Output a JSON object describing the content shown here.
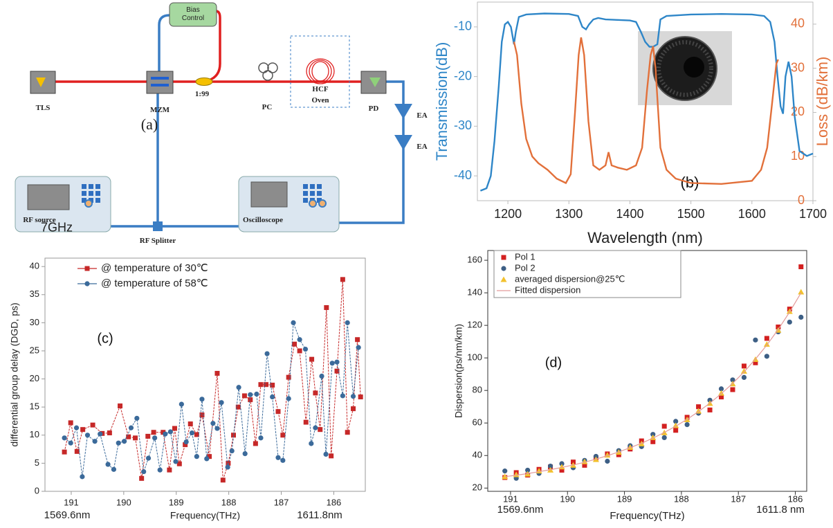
{
  "diagram": {
    "panel_label": "(a)",
    "labels": {
      "tls": "TLS",
      "mzm": "MZM",
      "bias": "Bias Control",
      "coupler": "1:99",
      "pc": "PC",
      "hcf": "HCF",
      "oven": "Oven",
      "pd": "PD",
      "ea1": "EA",
      "ea2": "EA",
      "rf_source": "RF source",
      "oscilloscope": "Oscilloscope",
      "rf_splitter": "RF Splitter",
      "frequency": "7GHz"
    }
  },
  "chart_data": [
    {
      "type": "line",
      "xlabel": "Wavelength (nm)",
      "ylabel": "Transmission(dB)",
      "y2label": "Loss (dB/km)",
      "annotation": "(b)",
      "xlim": [
        1150,
        1700
      ],
      "xticks": [
        1200,
        1300,
        1400,
        1500,
        1600,
        1700
      ],
      "ylim": [
        -45,
        -5
      ],
      "yticks": [
        -40,
        -30,
        -20,
        -10
      ],
      "y2lim": [
        0,
        45
      ],
      "y2ticks": [
        0,
        10,
        20,
        30,
        40
      ],
      "series": [
        {
          "color": "#2e86c8",
          "x": [
            1155,
            1165,
            1172,
            1178,
            1185,
            1190,
            1195,
            1200,
            1205,
            1210,
            1213,
            1218,
            1230,
            1260,
            1300,
            1315,
            1322,
            1328,
            1333,
            1340,
            1348,
            1360,
            1380,
            1400,
            1410,
            1418,
            1425,
            1432,
            1438,
            1445,
            1450,
            1460,
            1500,
            1550,
            1600,
            1620,
            1630,
            1637,
            1642,
            1647,
            1651,
            1655,
            1660,
            1665,
            1670,
            1678,
            1690,
            1700
          ],
          "values": [
            -43,
            -42.5,
            -40,
            -33,
            -22,
            -13,
            -9.5,
            -9,
            -10,
            -13.5,
            -11,
            -8,
            -7.5,
            -7.3,
            -7.4,
            -7.8,
            -10,
            -10.5,
            -9.5,
            -8.5,
            -8.2,
            -8.5,
            -8.6,
            -8.7,
            -9,
            -11,
            -13,
            -14,
            -14,
            -13.5,
            -8.5,
            -7.8,
            -7.5,
            -7.4,
            -7.5,
            -7.8,
            -9,
            -13,
            -20,
            -26,
            -27.5,
            -20,
            -17,
            -20,
            -28,
            -35,
            -36,
            -35.5
          ]
        },
        {
          "color": "#e2703a",
          "axis": "y2",
          "x": [
            1210,
            1215,
            1222,
            1230,
            1240,
            1250,
            1265,
            1280,
            1295,
            1303,
            1310,
            1316,
            1320,
            1325,
            1332,
            1340,
            1350,
            1360,
            1365,
            1370,
            1380,
            1395,
            1410,
            1420,
            1428,
            1434,
            1438,
            1442,
            1450,
            1460,
            1475,
            1500,
            1550,
            1600,
            1615,
            1625,
            1633,
            1640,
            1643
          ],
          "values": [
            36,
            33,
            22,
            14,
            10,
            8.5,
            7,
            5,
            4,
            6,
            20,
            33,
            37,
            33,
            18,
            8,
            7,
            8,
            11,
            8,
            7.5,
            7,
            8,
            12,
            25,
            33,
            35,
            30,
            12,
            7,
            5,
            4,
            3.8,
            4.5,
            7,
            12,
            22,
            31,
            32
          ]
        }
      ]
    },
    {
      "type": "line",
      "xlabel": "Frequency(THz)",
      "ylabel": "differential group delay (DGD, ps)",
      "annotation": "(c)",
      "x_range_labels": [
        "1569.6nm",
        "1611.8nm"
      ],
      "legend": "upper left",
      "xlim": [
        191.5,
        185.4
      ],
      "xticks": [
        191,
        190,
        189,
        188,
        187,
        186
      ],
      "ylim": [
        0,
        41.5
      ],
      "yticks": [
        0,
        5,
        10,
        15,
        20,
        25,
        30,
        35,
        40
      ],
      "series": [
        {
          "name": "@ temperature of 30℃",
          "color": "#c62828",
          "marker": "square",
          "x": [
            191.13,
            191.01,
            190.89,
            190.78,
            190.59,
            190.41,
            190.27,
            190.07,
            189.91,
            189.78,
            189.66,
            189.54,
            189.43,
            189.25,
            189.13,
            189.03,
            188.94,
            188.83,
            188.73,
            188.61,
            188.51,
            188.37,
            188.22,
            188.11,
            188.01,
            187.91,
            187.82,
            187.7,
            187.59,
            187.49,
            187.39,
            187.29,
            187.17,
            187.06,
            186.97,
            186.86,
            186.75,
            186.65,
            186.53,
            186.42,
            186.35,
            186.26,
            186.14,
            186.05,
            185.94,
            185.83,
            185.74,
            185.63,
            185.55,
            185.49
          ],
          "values": [
            7,
            12.2,
            7.1,
            11,
            11.8,
            10.3,
            10.4,
            15.2,
            9.7,
            9.5,
            2.3,
            9.8,
            10.5,
            10.5,
            3.8,
            11.2,
            4.9,
            8.3,
            12,
            10.1,
            13.6,
            6.2,
            21,
            2,
            5,
            10,
            15,
            17,
            16.3,
            8.5,
            19,
            19,
            18.9,
            14.2,
            10,
            20.3,
            26.2,
            25,
            12.3,
            23.5,
            17.5,
            11,
            32.7,
            6.3,
            21.4,
            37.7,
            10.5,
            14.7,
            27,
            16.8
          ]
        },
        {
          "name": "@ temperature of 58℃",
          "color": "#3b6a9a",
          "marker": "circle",
          "x": [
            191.13,
            191.01,
            190.9,
            190.79,
            190.69,
            190.55,
            190.45,
            190.3,
            190.19,
            190.1,
            189.99,
            189.86,
            189.75,
            189.62,
            189.53,
            189.41,
            189.31,
            189.21,
            189.11,
            189.01,
            188.9,
            188.81,
            188.7,
            188.61,
            188.51,
            188.42,
            188.3,
            188.22,
            188.14,
            188.02,
            187.94,
            187.81,
            187.69,
            187.59,
            187.47,
            187.39,
            187.27,
            187.17,
            187.06,
            186.97,
            186.86,
            186.77,
            186.65,
            186.54,
            186.43,
            186.35,
            186.23,
            186.15,
            186.03,
            185.94,
            185.83,
            185.74,
            185.63,
            185.53
          ],
          "values": [
            9.5,
            8.6,
            11.3,
            2.6,
            10,
            8.9,
            10.2,
            4.8,
            3.9,
            8.6,
            8.9,
            11.3,
            13,
            3.5,
            5.9,
            9.5,
            3.8,
            10.2,
            10.6,
            5.3,
            15.5,
            8.8,
            10.4,
            6.2,
            16.4,
            5.8,
            12.1,
            11.2,
            15.8,
            4.3,
            7.2,
            18.5,
            6.7,
            17.2,
            17.3,
            9.5,
            24.5,
            16.8,
            6,
            5.5,
            16.5,
            30,
            27,
            25.3,
            8.5,
            11.3,
            20.5,
            6.6,
            22.8,
            23,
            17,
            30,
            16.9,
            25.6
          ]
        }
      ]
    },
    {
      "type": "scatter",
      "xlabel": "Frequency(THz)",
      "ylabel": "Dispersion(ps/nm/km)",
      "annotation": "(d)",
      "x_range_labels": [
        "1569.6nm",
        "1611.8 nm"
      ],
      "legend": "upper left",
      "xlim": [
        191.4,
        185.8
      ],
      "xticks": [
        191,
        190,
        189,
        188,
        187,
        186
      ],
      "ylim": [
        18,
        166
      ],
      "yticks": [
        20,
        40,
        60,
        80,
        100,
        120,
        140,
        160
      ],
      "x": [
        191.1,
        190.9,
        190.7,
        190.5,
        190.3,
        190.1,
        189.9,
        189.7,
        189.5,
        189.3,
        189.1,
        188.9,
        188.7,
        188.5,
        188.3,
        188.1,
        187.9,
        187.7,
        187.5,
        187.3,
        187.1,
        186.9,
        186.7,
        186.5,
        186.3,
        186.1,
        185.9
      ],
      "series": [
        {
          "name": "Pol 1",
          "color": "#d32020",
          "marker": "square",
          "values": [
            26.5,
            29.5,
            28,
            31.5,
            33,
            31,
            36,
            34,
            38.5,
            41,
            40.5,
            44,
            49,
            48.5,
            58,
            55.5,
            63.5,
            70,
            68,
            76,
            80.5,
            95,
            97,
            112,
            119,
            130,
            156
          ]
        },
        {
          "name": "Pol 2",
          "color": "#3d5f85",
          "marker": "circle",
          "values": [
            30.5,
            26,
            31,
            29,
            33.5,
            35,
            32.5,
            37,
            39.5,
            36.5,
            43,
            46,
            45.5,
            53,
            51,
            61,
            59,
            66,
            74,
            81,
            86.5,
            88,
            111,
            101,
            116,
            122,
            125
          ]
        },
        {
          "name": "averaged dispersion@25℃",
          "color": "#f2c12e",
          "marker": "triangle",
          "values": [
            27,
            28.2,
            28.6,
            30.5,
            31,
            33,
            34,
            36.2,
            37.5,
            40.2,
            42,
            45,
            47.2,
            51,
            54,
            58.4,
            62,
            67.3,
            72,
            78.3,
            84,
            91.8,
            99,
            108.3,
            117,
            128.5,
            140.5
          ]
        },
        {
          "name": "Fitted dispersion",
          "color": "#e39a9a",
          "line": true,
          "values": [
            27,
            27.9,
            28.9,
            30.1,
            31.3,
            32.7,
            34.2,
            35.9,
            37.8,
            39.9,
            42.2,
            44.8,
            47.6,
            50.7,
            54.2,
            58,
            62.3,
            67,
            72.2,
            78,
            84.3,
            91.4,
            99.3,
            107.9,
            117.5,
            128.2,
            140
          ]
        }
      ]
    }
  ]
}
